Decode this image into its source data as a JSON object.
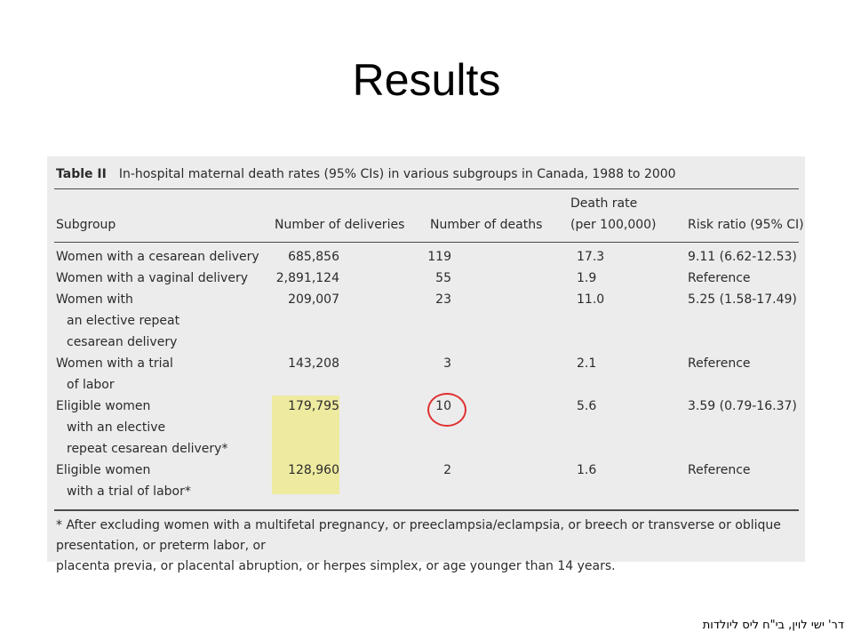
{
  "slide": {
    "title": "Results",
    "footer": "דר' ישי לוין, בי\"ח ליס ליולדות"
  },
  "table": {
    "label": "Table II",
    "caption": "In-hospital maternal death rates (95% CIs) in various subgroups in Canada, 1988 to 2000",
    "headers": {
      "subgroup": "Subgroup",
      "deliveries": "Number of deliveries",
      "deaths": "Number of deaths",
      "rate_line1": "Death rate",
      "rate_line2": "(per 100,000)",
      "ratio": "Risk ratio (95% CI)"
    },
    "rows": [
      {
        "subgroup": [
          "Women with a cesarean delivery"
        ],
        "deliveries": "685,856",
        "deaths": "119",
        "rate": "17.3",
        "ratio": "9.11 (6.62-12.53)"
      },
      {
        "subgroup": [
          "Women with a vaginal delivery"
        ],
        "deliveries": "2,891,124",
        "deaths": "55",
        "rate": "1.9",
        "ratio": "Reference"
      },
      {
        "subgroup": [
          "Women with",
          "an elective repeat",
          "cesarean delivery"
        ],
        "deliveries": "209,007",
        "deaths": "23",
        "rate": "11.0",
        "ratio": "5.25 (1.58-17.49)"
      },
      {
        "subgroup": [
          "Women with a trial",
          "of labor"
        ],
        "deliveries": "143,208",
        "deaths": "3",
        "rate": "2.1",
        "ratio": "Reference"
      },
      {
        "subgroup": [
          "Eligible women",
          "with an elective",
          "repeat cesarean delivery*"
        ],
        "deliveries": "179,795",
        "deaths": "10",
        "rate": "5.6",
        "ratio": "3.59 (0.79-16.37)"
      },
      {
        "subgroup": [
          "Eligible women",
          "with a trial of labor*"
        ],
        "deliveries": "128,960",
        "deaths": "2",
        "rate": "1.6",
        "ratio": "Reference"
      }
    ],
    "footnote": [
      "* After excluding women with a multifetal pregnancy, or preeclampsia/eclampsia, or breech or transverse or oblique presentation, or preterm labor, or",
      "placenta previa, or placental abruption, or herpes simplex, or age younger than 14 years."
    ]
  },
  "colors": {
    "highlight": "#eeeaa0",
    "circle": "#e03030",
    "panel": "#ececec"
  }
}
